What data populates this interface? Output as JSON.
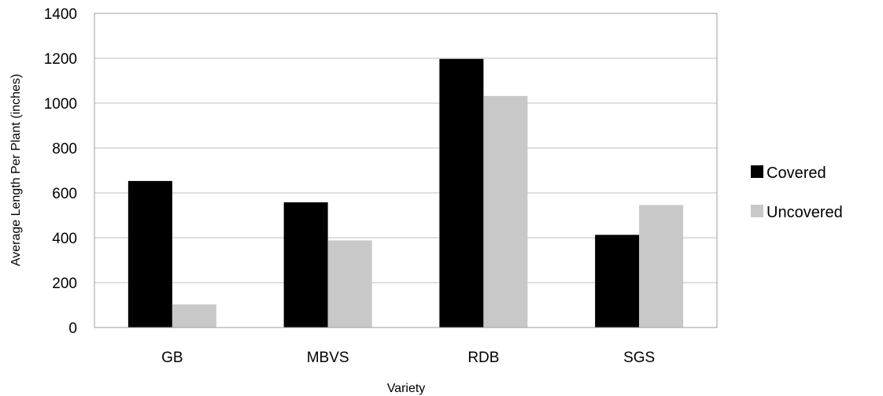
{
  "chart_data": {
    "type": "bar",
    "title": "",
    "xlabel": "Variety",
    "ylabel": "Average Length Per Plant (inches)",
    "categories": [
      "GB",
      "MBVS",
      "RDB",
      "SGS"
    ],
    "series": [
      {
        "name": "Covered",
        "values": [
          653,
          558,
          1197,
          413
        ]
      },
      {
        "name": "Uncovered",
        "values": [
          103,
          388,
          1032,
          546
        ]
      }
    ],
    "ylim": [
      0,
      1400
    ],
    "yticks": [
      "0",
      "200",
      "400",
      "600",
      "800",
      "1000",
      "1200",
      "1400"
    ],
    "grid": true,
    "legend_position": "right",
    "colors": {
      "Covered": "#000000",
      "Uncovered": "#c8c8c8",
      "grid": "#bfbfbf",
      "axis": "#9e9e9e"
    }
  }
}
